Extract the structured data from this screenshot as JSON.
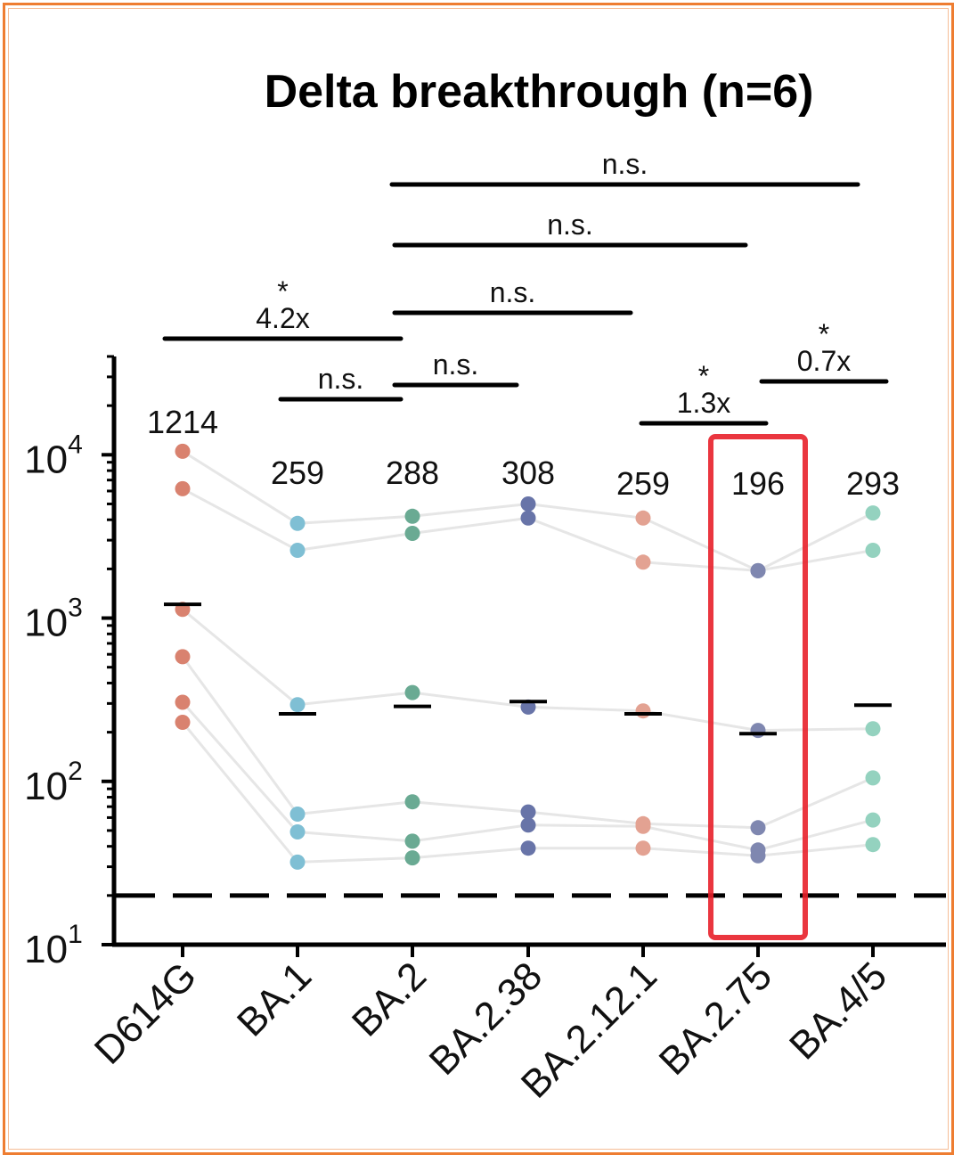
{
  "chart_data": {
    "type": "scatter",
    "title": "Delta breakthrough (n=6)",
    "yscale": "log",
    "ylim": [
      10,
      40000
    ],
    "yticks": [
      {
        "value": 10,
        "base": "10",
        "exp": "1"
      },
      {
        "value": 100,
        "base": "10",
        "exp": "2"
      },
      {
        "value": 1000,
        "base": "10",
        "exp": "3"
      },
      {
        "value": 10000,
        "base": "10",
        "exp": "4"
      }
    ],
    "detection_limit": 20,
    "categories": [
      "D614G",
      "BA.1",
      "BA.2",
      "BA.2.38",
      "BA.2.12.1",
      "BA.2.75",
      "BA.4/5"
    ],
    "colors": [
      "#d9826f",
      "#7fbfd4",
      "#6aaa93",
      "#6874a8",
      "#e3a292",
      "#7f87b0",
      "#94d2bf"
    ],
    "geomeans": [
      "1214",
      "259",
      "288",
      "308",
      "259",
      "196",
      "293"
    ],
    "geomean_values": [
      1214,
      259,
      288,
      308,
      259,
      196,
      293
    ],
    "subjects": [
      [
        10500,
        3800,
        4200,
        5000,
        4100,
        1950,
        4400
      ],
      [
        6200,
        2600,
        3300,
        4100,
        2200,
        1950,
        2600
      ],
      [
        1130,
        295,
        350,
        285,
        270,
        205,
        210
      ],
      [
        580,
        63,
        75,
        65,
        55,
        52,
        105
      ],
      [
        305,
        49,
        43,
        54,
        53,
        38,
        58
      ],
      [
        230,
        32,
        34,
        39,
        39,
        35,
        41
      ]
    ],
    "comparisons": [
      {
        "from": "D614G",
        "to": "BA.2",
        "star": "*",
        "label": "4.2x"
      },
      {
        "from": "BA.1",
        "to": "BA.2",
        "star": "",
        "label": "n.s."
      },
      {
        "from": "BA.2",
        "to": "BA.2.38",
        "star": "",
        "label": "n.s."
      },
      {
        "from": "BA.2",
        "to": "BA.2.12.1",
        "star": "",
        "label": "n.s."
      },
      {
        "from": "BA.2",
        "to": "BA.2.75",
        "star": "",
        "label": "n.s."
      },
      {
        "from": "BA.2",
        "to": "BA.4/5",
        "star": "",
        "label": "n.s."
      },
      {
        "from": "BA.2.12.1",
        "to": "BA.2.75",
        "star": "*",
        "label": "1.3x"
      },
      {
        "from": "BA.2.75",
        "to": "BA.4/5",
        "star": "*",
        "label": "0.7x"
      }
    ],
    "highlight": "BA.2.75",
    "highlight_color": "#e8202a",
    "frame_color": "#ee7d31"
  }
}
